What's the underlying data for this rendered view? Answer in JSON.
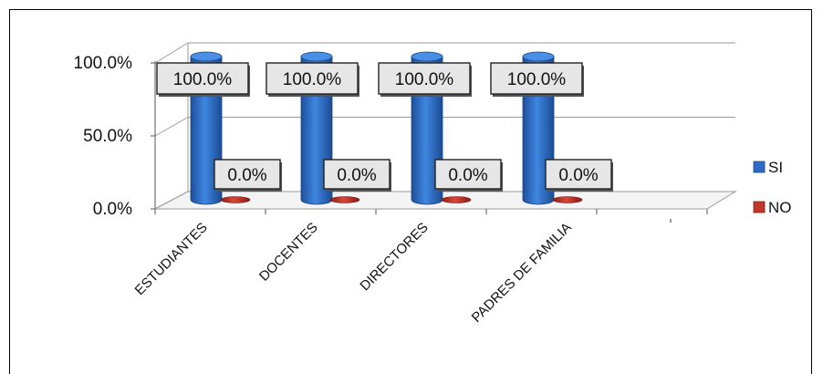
{
  "chart_data": {
    "type": "bar",
    "title": "",
    "xlabel": "",
    "ylabel": "",
    "categories": [
      "ESTUDIANTES",
      "DOCENTES",
      "DIRECTORES",
      "PADRES DE FAMILIA"
    ],
    "series": [
      {
        "name": "SI",
        "values": [
          100.0,
          100.0,
          100.0,
          100.0
        ],
        "color": "#2E6BC6",
        "data_labels": [
          "100.0%",
          "100.0%",
          "100.0%",
          "100.0%"
        ]
      },
      {
        "name": "NO",
        "values": [
          0.0,
          0.0,
          0.0,
          0.0
        ],
        "color": "#C0392B",
        "data_labels": [
          "0.0%",
          "0.0%",
          "0.0%",
          "0.0%"
        ]
      }
    ],
    "yticks": [
      {
        "value": 100,
        "label": "100.0%"
      },
      {
        "value": 50,
        "label": "50.0%"
      },
      {
        "value": 0,
        "label": "0.0%"
      }
    ],
    "ylim": [
      0,
      100
    ],
    "grid": true,
    "legend": "right",
    "style": "3d-cylinder"
  }
}
